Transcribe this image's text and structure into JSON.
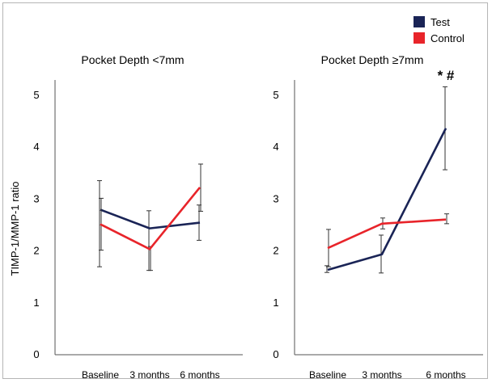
{
  "legend": [
    {
      "label": "Test",
      "color": "#1a2456"
    },
    {
      "label": "Control",
      "color": "#e8242a"
    }
  ],
  "ylabel": "TIMP-1/MMP-1 ratio",
  "chart_data": [
    {
      "type": "line",
      "title": "Pocket Depth <7mm",
      "categories": [
        "Baseline",
        "3 months",
        "6 months"
      ],
      "ylim": [
        0,
        5
      ],
      "yticks": [
        "0",
        "1",
        "2",
        "3",
        "4",
        "5"
      ],
      "series": [
        {
          "name": "Test",
          "color": "#1a2456",
          "values": [
            2.78,
            2.42,
            2.53
          ],
          "err_low": [
            1.68,
            1.61,
            2.19
          ],
          "err_high": [
            3.34,
            2.76,
            2.87
          ]
        },
        {
          "name": "Control",
          "color": "#e8242a",
          "values": [
            2.5,
            2.02,
            3.21
          ],
          "err_low": [
            2.0,
            1.61,
            2.75
          ],
          "err_high": [
            3.0,
            2.07,
            3.66
          ]
        }
      ],
      "annotation": ""
    },
    {
      "type": "line",
      "title": "Pocket Depth ≥7mm",
      "categories": [
        "Baseline",
        "3 months",
        "6 months"
      ],
      "ylim": [
        0,
        5
      ],
      "yticks": [
        "0",
        "1",
        "2",
        "3",
        "4",
        "5"
      ],
      "series": [
        {
          "name": "Test",
          "color": "#1a2456",
          "values": [
            1.62,
            1.92,
            4.35
          ],
          "err_low": [
            1.57,
            1.56,
            3.55
          ],
          "err_high": [
            1.7,
            2.29,
            5.15
          ]
        },
        {
          "name": "Control",
          "color": "#e8242a",
          "values": [
            2.04,
            2.51,
            2.59
          ],
          "err_low": [
            1.68,
            2.41,
            2.51
          ],
          "err_high": [
            2.4,
            2.62,
            2.7
          ]
        }
      ],
      "annotation": "* #"
    }
  ]
}
